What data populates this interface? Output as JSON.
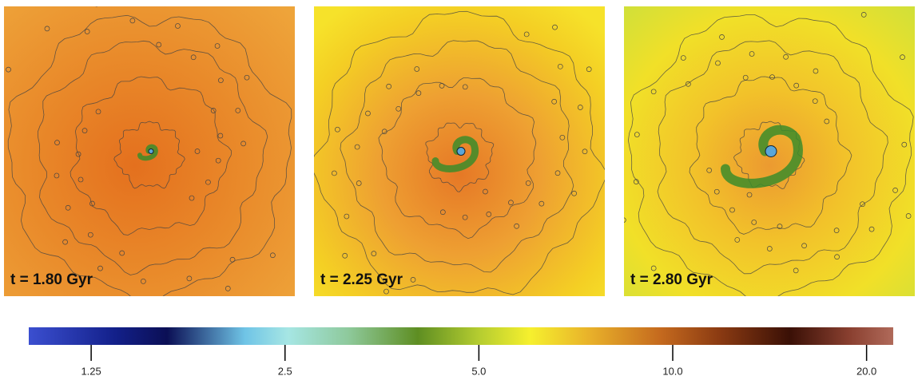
{
  "panels": [
    {
      "label": "t = 1.80 Gyr"
    },
    {
      "label": "t = 2.25 Gyr"
    },
    {
      "label": "t = 2.80 Gyr"
    }
  ],
  "colorbar": {
    "range": [
      1,
      22
    ],
    "log": true,
    "ticks": [
      1.25,
      2.5,
      {
        "value": 5,
        "label": "5.0"
      },
      {
        "value": 10,
        "label": "10.0"
      },
      {
        "value": 20,
        "label": "20.0"
      }
    ]
  }
}
